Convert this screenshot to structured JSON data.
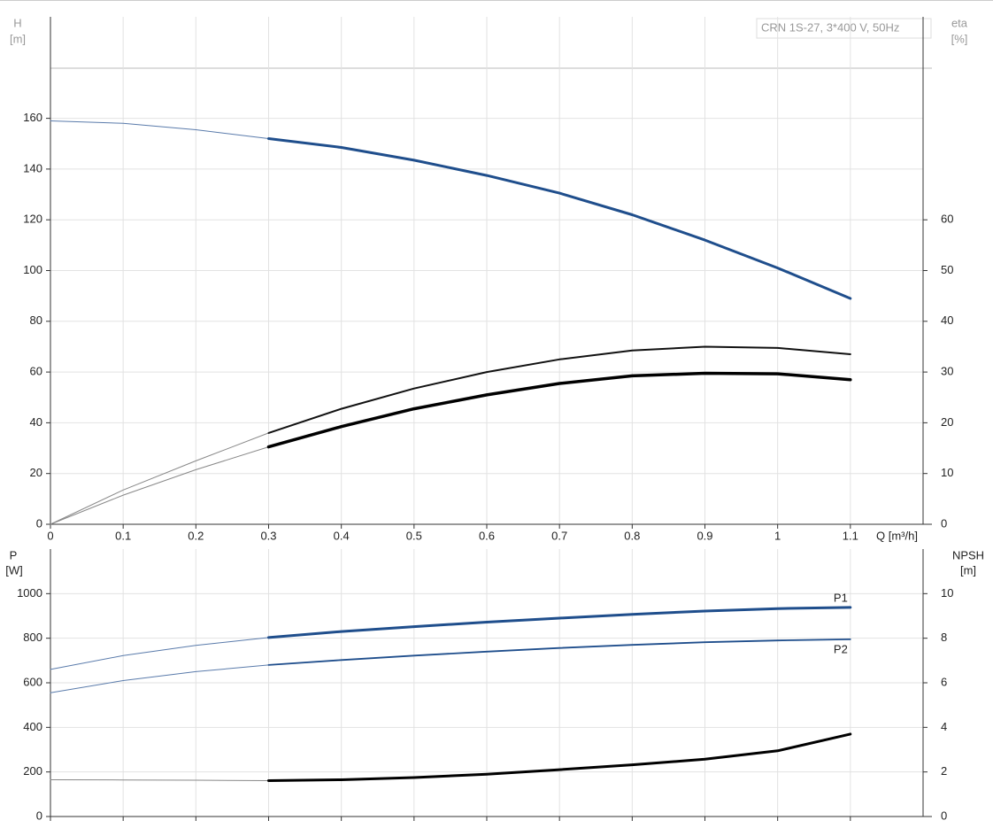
{
  "chart_data": [
    {
      "type": "line",
      "subtitle": "CRN 1S-27, 3*400 V, 50Hz",
      "ylabel": [
        "H",
        "[m]"
      ],
      "y2label": [
        "eta",
        "[%]"
      ],
      "xlabel": "Q [m³/h]",
      "xlim": [
        0,
        1.2
      ],
      "xticks": [
        0,
        0.1,
        0.2,
        0.3,
        0.4,
        0.5,
        0.6,
        0.7,
        0.8,
        0.9,
        1.0,
        1.1
      ],
      "ylim": [
        0,
        200
      ],
      "yticks": [
        0,
        20,
        40,
        60,
        80,
        100,
        120,
        140,
        160
      ],
      "y2lim": [
        0,
        100
      ],
      "y2ticks": [
        0,
        10,
        20,
        30,
        40,
        50,
        60
      ],
      "grid": true,
      "duty_range": [
        0.3,
        1.1
      ],
      "x": [
        0,
        0.1,
        0.2,
        0.3,
        0.4,
        0.5,
        0.6,
        0.7,
        0.8,
        0.9,
        1.0,
        1.1
      ],
      "series": [
        {
          "color": "#1f4e8c",
          "width": 3,
          "values": [
            159,
            158,
            155.5,
            152,
            148.5,
            143.5,
            137.5,
            130.5,
            122,
            112,
            101,
            89
          ]
        },
        {
          "color": "#111111",
          "width": 2,
          "axis": "y2",
          "values": [
            0,
            6.75,
            12.5,
            18,
            22.75,
            26.75,
            30,
            32.5,
            34.25,
            35,
            34.75,
            33.5
          ]
        },
        {
          "color": "#000000",
          "width": 3.5,
          "axis": "y2",
          "values": [
            0,
            5.75,
            10.75,
            15.25,
            19.25,
            22.75,
            25.5,
            27.75,
            29.25,
            29.75,
            29.65,
            28.5
          ]
        }
      ]
    },
    {
      "type": "line",
      "ylabel": [
        "P",
        "[W]"
      ],
      "y2label": [
        "NPSH",
        "[m]"
      ],
      "ylim": [
        0,
        1200
      ],
      "yticks": [
        0,
        200,
        400,
        600,
        800,
        1000
      ],
      "y2lim": [
        0,
        12
      ],
      "y2ticks": [
        0,
        2,
        4,
        6,
        8,
        10
      ],
      "grid": true,
      "duty_range": [
        0.3,
        1.1
      ],
      "x": [
        0,
        0.1,
        0.2,
        0.3,
        0.4,
        0.5,
        0.6,
        0.7,
        0.8,
        0.9,
        1.0,
        1.1
      ],
      "series": [
        {
          "name": "P1",
          "color": "#1f4e8c",
          "width": 3,
          "values": [
            660,
            722,
            768,
            803,
            830,
            852,
            872,
            890,
            907,
            922,
            933,
            938
          ]
        },
        {
          "name": "P2",
          "color": "#1f4e8c",
          "width": 1.8,
          "values": [
            555,
            610,
            650,
            680,
            702,
            722,
            740,
            756,
            770,
            782,
            790,
            795
          ]
        },
        {
          "color": "#000000",
          "width": 3,
          "axis": "y2",
          "values": [
            1.65,
            1.64,
            1.63,
            1.61,
            1.65,
            1.75,
            1.9,
            2.1,
            2.32,
            2.57,
            2.95,
            3.7
          ]
        }
      ]
    }
  ]
}
